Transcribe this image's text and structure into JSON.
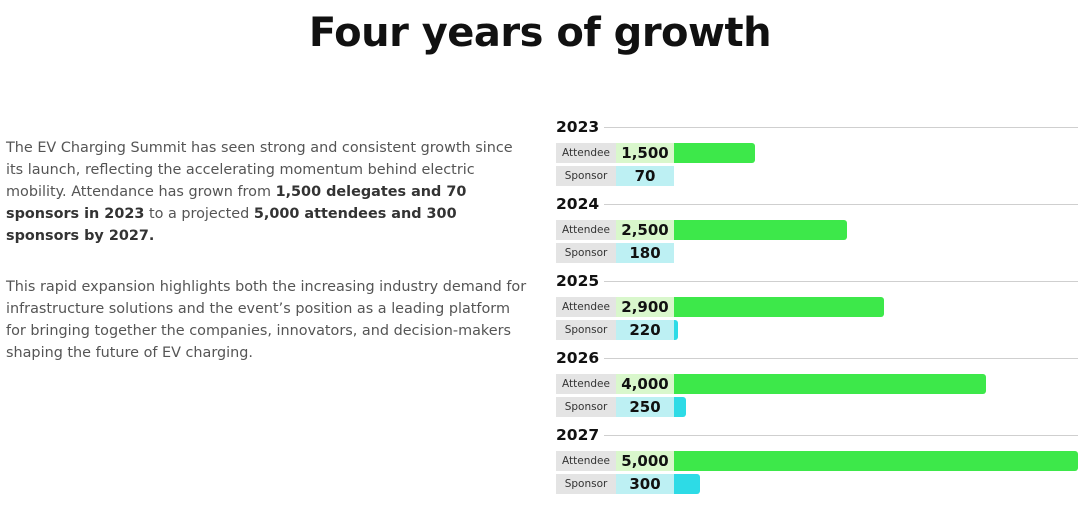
{
  "title": "Four years of growth",
  "body": {
    "p1_a": "The EV Charging Summit has seen strong and consistent growth since its launch, reflecting the accelerating momentum behind electric mobility. Attendance has grown from ",
    "p1_b": "1,500 delegates and 70 sponsors in 2023",
    "p1_c": " to a projected ",
    "p1_d": "5,000 attendees and 300 sponsors by 2027.",
    "p2": "This rapid expansion highlights both the increasing industry demand for infrastructure solutions and the event’s position as a leading platform for bringing together the companies, innovators, and decision-makers shaping the future of EV charging."
  },
  "colors": {
    "attendee": "#3de84a",
    "sponsor": "#2ddbe6"
  },
  "chart_data": {
    "type": "bar",
    "orientation": "horizontal",
    "categories": [
      "2023",
      "2024",
      "2025",
      "2026",
      "2027"
    ],
    "series": [
      {
        "name": "Attendee",
        "values": [
          1500,
          2500,
          2900,
          4000,
          5000
        ],
        "labels": [
          "1,500",
          "2,500",
          "2,900",
          "4,000",
          "5,000"
        ]
      },
      {
        "name": "Sponsor",
        "values": [
          70,
          180,
          220,
          250,
          300
        ],
        "labels": [
          "70",
          "180",
          "220",
          "250",
          "300"
        ]
      }
    ],
    "title": "",
    "xlabel": "",
    "ylabel": "",
    "xlim": [
      0,
      5000
    ]
  }
}
